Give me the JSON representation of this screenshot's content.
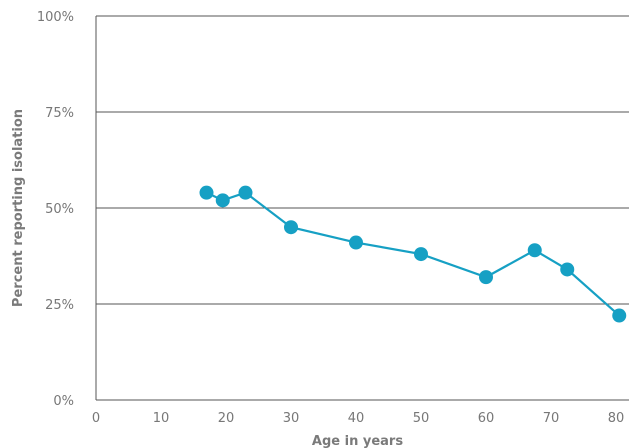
{
  "chart_data": {
    "type": "line",
    "xlabel": "Age in years",
    "ylabel": "Percent reporting isolation",
    "xlim": [
      0,
      82
    ],
    "ylim": [
      0,
      100
    ],
    "x_ticks": [
      "0",
      "10",
      "20",
      "30",
      "40",
      "50",
      "60",
      "70",
      "80"
    ],
    "y_ticks": [
      "0%",
      "25%",
      "50%",
      "75%",
      "100%"
    ],
    "grid": "horizontal",
    "series": [
      {
        "color": "#16a0c4",
        "points": [
          {
            "x": 17,
            "y": 54
          },
          {
            "x": 19.5,
            "y": 52
          },
          {
            "x": 23,
            "y": 54
          },
          {
            "x": 30,
            "y": 45
          },
          {
            "x": 40,
            "y": 41
          },
          {
            "x": 50,
            "y": 38
          },
          {
            "x": 60,
            "y": 32
          },
          {
            "x": 67.5,
            "y": 39
          },
          {
            "x": 72.5,
            "y": 34
          },
          {
            "x": 80.5,
            "y": 22
          }
        ]
      }
    ]
  }
}
